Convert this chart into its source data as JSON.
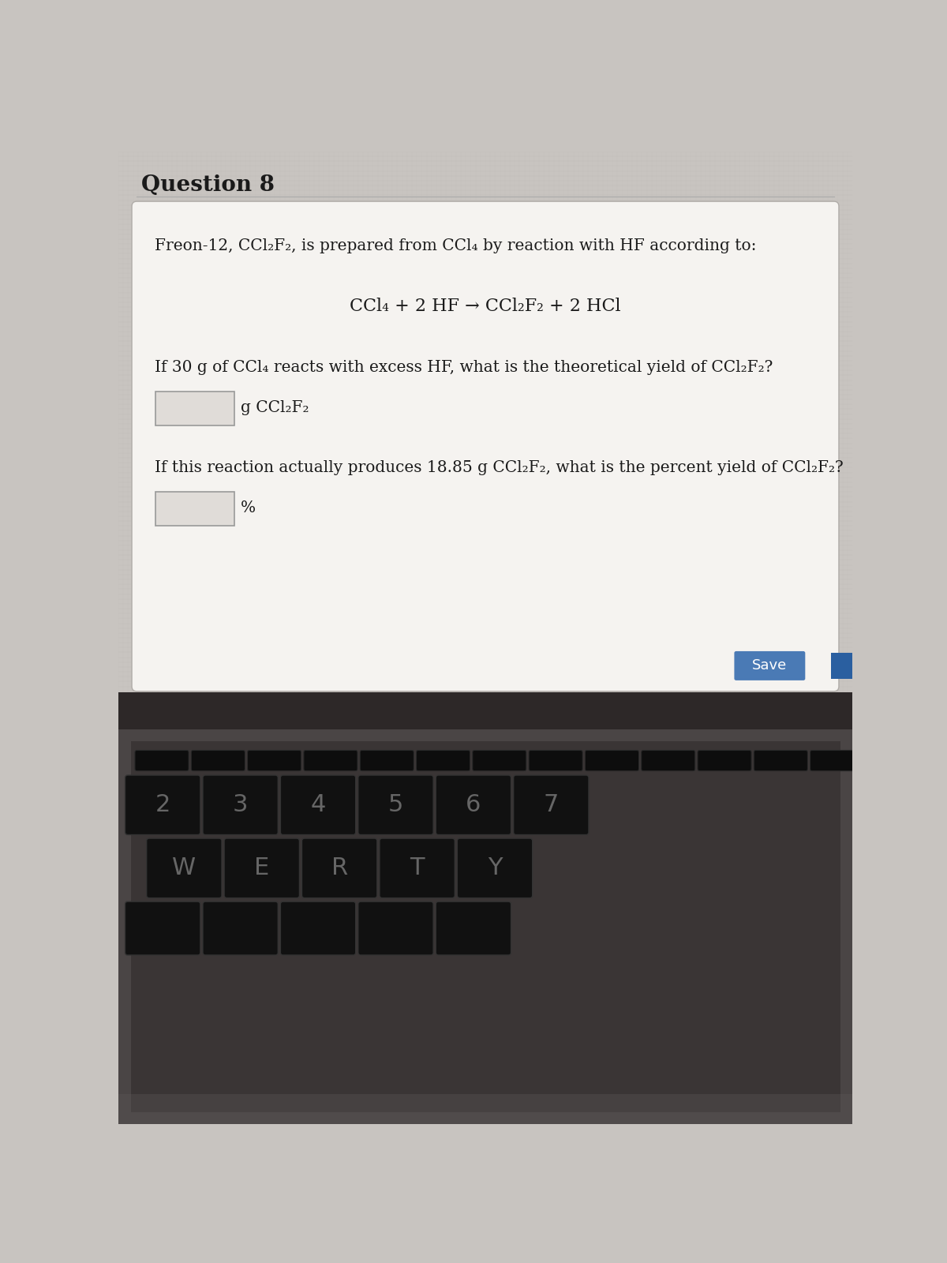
{
  "title": "Question 8",
  "bg_outer": "#c8c4c0",
  "card_bg": "#f5f3f0",
  "text_color": "#1a1a1a",
  "title_fontsize": 20,
  "body_fontsize": 14.5,
  "eq_fontsize": 16,
  "line1": "Freon-12, CCl₂F₂, is prepared from CCl₄ by reaction with HF according to:",
  "equation": "CCl₄ + 2 HF → CCl₂F₂ + 2 HCl",
  "line2": "If 30 g of CCl₄ reacts with excess HF, what is the theoretical yield of CCl₂F₂?",
  "label1": "g CCl₂F₂",
  "line3": "If this reaction actually produces 18.85 g CCl₂F₂, what is the percent yield of CCl₂F₂?",
  "label2": "%",
  "save_button_color": "#4a7ab5",
  "save_text": "Save",
  "next_btn_color": "#2a5fa0",
  "kbd_bg": "#1a1a1a",
  "kbd_surround": "#3a3535",
  "key_face": "#111111",
  "key_edge": "#444444",
  "key_label_color": "#666666",
  "fn_key_face": "#0d0d0d",
  "screen_bezel_color": "#2d2828",
  "laptop_body_color": "#4a4545"
}
